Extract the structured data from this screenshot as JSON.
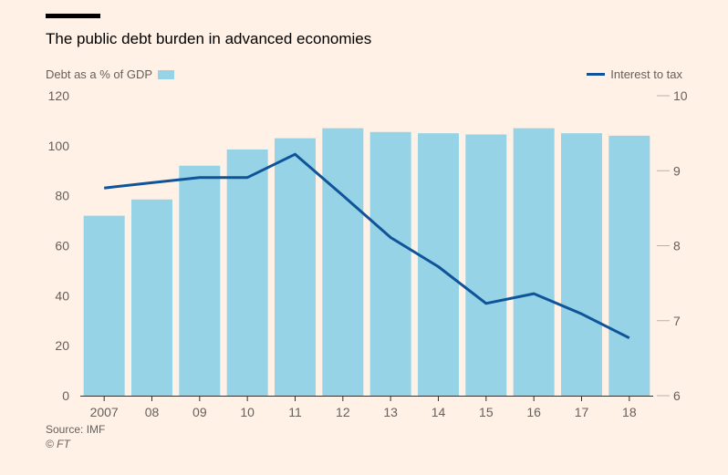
{
  "title": "The public debt burden in advanced economies",
  "legend": {
    "left_label": "Debt as a % of GDP",
    "right_label": "Interest to tax"
  },
  "source": "Source: IMF",
  "copyright": "© FT",
  "colors": {
    "bar": "#96d3e6",
    "line": "#0f5499",
    "background": "#fff1e5",
    "axis": "#66605c"
  },
  "chart_data": {
    "type": "bar",
    "categories": [
      "2007",
      "08",
      "09",
      "10",
      "11",
      "12",
      "13",
      "14",
      "15",
      "16",
      "17",
      "18"
    ],
    "series": [
      {
        "name": "Debt as a % of GDP",
        "type": "bar",
        "axis": "left",
        "values": [
          72,
          78.5,
          92,
          98.5,
          103,
          107,
          105.5,
          105,
          104.5,
          107,
          105,
          104
        ]
      },
      {
        "name": "Interest to tax",
        "type": "line",
        "axis": "right",
        "values": [
          8.77,
          8.84,
          8.91,
          8.91,
          9.22,
          8.67,
          8.11,
          7.72,
          7.23,
          7.36,
          7.09,
          6.77
        ]
      }
    ],
    "left_axis": {
      "ylim": [
        0,
        120
      ],
      "ticks": [
        0,
        20,
        40,
        60,
        80,
        100,
        120
      ]
    },
    "right_axis": {
      "ylim": [
        6,
        10
      ],
      "ticks": [
        6,
        7,
        8,
        9,
        10
      ]
    },
    "title": "The public debt burden in advanced economies"
  }
}
